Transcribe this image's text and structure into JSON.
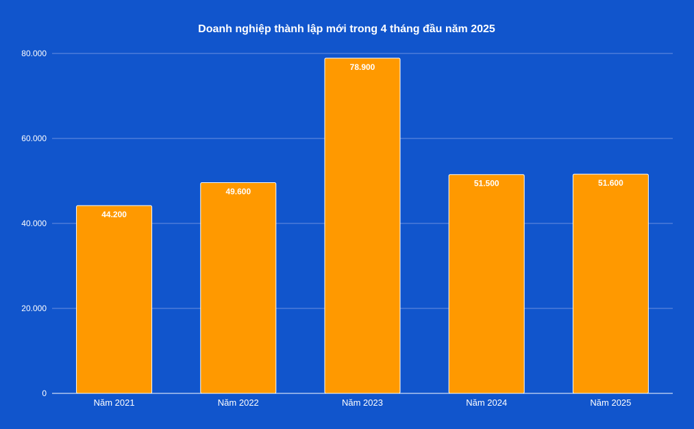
{
  "chart_data": {
    "type": "bar",
    "title": "Doanh nghiệp thành lập mới trong 4 tháng đầu năm 2025",
    "xlabel": "",
    "ylabel": "",
    "categories": [
      "Năm 2021",
      "Năm 2022",
      "Năm 2023",
      "Năm 2024",
      "Năm 2025"
    ],
    "values": [
      44200,
      49600,
      78900,
      51500,
      51600
    ],
    "value_labels": [
      "44.200",
      "49.600",
      "78.900",
      "51.500",
      "51.600"
    ],
    "ylim": [
      0,
      80000
    ],
    "yticks": [
      0,
      20000,
      40000,
      60000,
      80000
    ],
    "ytick_labels": [
      "0",
      "20.000",
      "40.000",
      "60.000",
      "80.000"
    ],
    "grid": true,
    "legend": "none",
    "colors": {
      "background": "#1155cc",
      "bar": "#ff9900",
      "bar_border": "#ffffff",
      "gridline": "#6b8fe0",
      "axis": "#ffffff",
      "text": "#ffffff"
    }
  }
}
